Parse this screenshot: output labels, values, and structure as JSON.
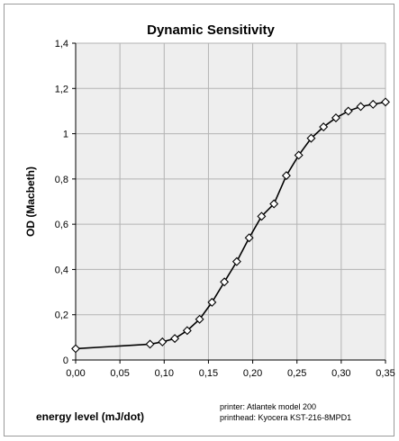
{
  "chart_data": {
    "type": "line",
    "title": "Dynamic Sensitivity",
    "xlabel": "energy level (mJ/dot)",
    "ylabel": "OD (Macbeth)",
    "xlim": [
      0,
      0.35
    ],
    "ylim": [
      0,
      1.4
    ],
    "x_ticks": [
      "0,00",
      "0,05",
      "0,10",
      "0,15",
      "0,20",
      "0,25",
      "0,30",
      "0,35"
    ],
    "y_ticks": [
      "0",
      "0,2",
      "0,4",
      "0,6",
      "0,8",
      "1",
      "1,2",
      "1,4"
    ],
    "grid": true,
    "marker": "diamond",
    "series": [
      {
        "x": [
          0.0,
          0.084,
          0.098,
          0.112,
          0.126,
          0.14,
          0.154,
          0.168,
          0.182,
          0.196,
          0.21,
          0.224,
          0.238,
          0.252,
          0.266,
          0.28,
          0.294,
          0.308,
          0.322,
          0.336,
          0.35
        ],
        "y": [
          0.05,
          0.07,
          0.08,
          0.095,
          0.13,
          0.18,
          0.255,
          0.345,
          0.435,
          0.54,
          0.635,
          0.69,
          0.815,
          0.905,
          0.98,
          1.03,
          1.07,
          1.1,
          1.12,
          1.13,
          1.14
        ]
      }
    ],
    "annotations": [
      "printer: Atlantek model 200",
      "printhead: Kyocera KST-216-8MPD1"
    ],
    "colors": {
      "plot_bg": "#eeeeee",
      "grid": "#b3b3b3",
      "line": "#000000",
      "marker_fill": "#ffffff"
    }
  }
}
